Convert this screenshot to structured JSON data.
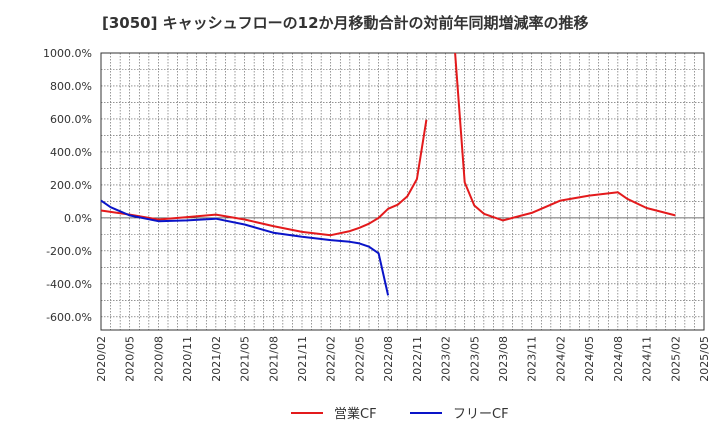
{
  "chart_data": {
    "type": "line",
    "title": "[3050]  キャッシュフローの12か月移動合計の対前年同期増減率の推移",
    "xlabel": "",
    "ylabel": "",
    "ylim": [
      -680,
      1000
    ],
    "xlim": [
      "2020/02",
      "2025/05"
    ],
    "y_ticks": [
      "1000.0%",
      "800.0%",
      "600.0%",
      "400.0%",
      "200.0%",
      "0.0%",
      "-200.0%",
      "-400.0%",
      "-600.0%"
    ],
    "y_tick_values": [
      1000,
      800,
      600,
      400,
      200,
      0,
      -200,
      -400,
      -600
    ],
    "x_ticks": [
      "2020/02",
      "2020/05",
      "2020/08",
      "2020/11",
      "2021/02",
      "2021/05",
      "2021/08",
      "2021/11",
      "2022/02",
      "2022/05",
      "2022/08",
      "2022/11",
      "2023/02",
      "2023/05",
      "2023/08",
      "2023/11",
      "2024/02",
      "2024/05",
      "2024/08",
      "2024/11",
      "2025/02",
      "2025/05"
    ],
    "grid": true,
    "legend_position": "bottom",
    "series": [
      {
        "name": "営業CF",
        "color": "#e31a1c",
        "points": [
          {
            "x": "2020/02",
            "y": 45
          },
          {
            "x": "2020/05",
            "y": 20
          },
          {
            "x": "2020/08",
            "y": -10
          },
          {
            "x": "2020/11",
            "y": 5
          },
          {
            "x": "2021/02",
            "y": 20
          },
          {
            "x": "2021/05",
            "y": -10
          },
          {
            "x": "2021/08",
            "y": -50
          },
          {
            "x": "2021/11",
            "y": -85
          },
          {
            "x": "2022/02",
            "y": -105
          },
          {
            "x": "2022/04",
            "y": -80
          },
          {
            "x": "2022/05",
            "y": -60
          },
          {
            "x": "2022/06",
            "y": -35
          },
          {
            "x": "2022/07",
            "y": 0
          },
          {
            "x": "2022/08",
            "y": 55
          },
          {
            "x": "2022/09",
            "y": 80
          },
          {
            "x": "2022/10",
            "y": 130
          },
          {
            "x": "2022/11",
            "y": 235
          },
          {
            "x": "2022/12",
            "y": 595
          },
          null,
          {
            "x": "2023/03",
            "y": 1000
          },
          {
            "x": "2023/04",
            "y": 215
          },
          {
            "x": "2023/05",
            "y": 75
          },
          {
            "x": "2023/06",
            "y": 25
          },
          {
            "x": "2023/08",
            "y": -15
          },
          {
            "x": "2023/11",
            "y": 30
          },
          {
            "x": "2024/02",
            "y": 105
          },
          {
            "x": "2024/05",
            "y": 135
          },
          {
            "x": "2024/08",
            "y": 155
          },
          {
            "x": "2024/09",
            "y": 115
          },
          {
            "x": "2024/11",
            "y": 60
          },
          {
            "x": "2025/02",
            "y": 15
          }
        ]
      },
      {
        "name": "フリーCF",
        "color": "#0a14c8",
        "points": [
          {
            "x": "2020/02",
            "y": 105
          },
          {
            "x": "2020/03",
            "y": 65
          },
          {
            "x": "2020/05",
            "y": 15
          },
          {
            "x": "2020/08",
            "y": -20
          },
          {
            "x": "2020/11",
            "y": -15
          },
          {
            "x": "2021/02",
            "y": -5
          },
          {
            "x": "2021/05",
            "y": -40
          },
          {
            "x": "2021/08",
            "y": -90
          },
          {
            "x": "2021/11",
            "y": -115
          },
          {
            "x": "2022/02",
            "y": -135
          },
          {
            "x": "2022/04",
            "y": -145
          },
          {
            "x": "2022/05",
            "y": -155
          },
          {
            "x": "2022/06",
            "y": -175
          },
          {
            "x": "2022/07",
            "y": -215
          },
          {
            "x": "2022/08",
            "y": -470
          }
        ]
      }
    ]
  }
}
